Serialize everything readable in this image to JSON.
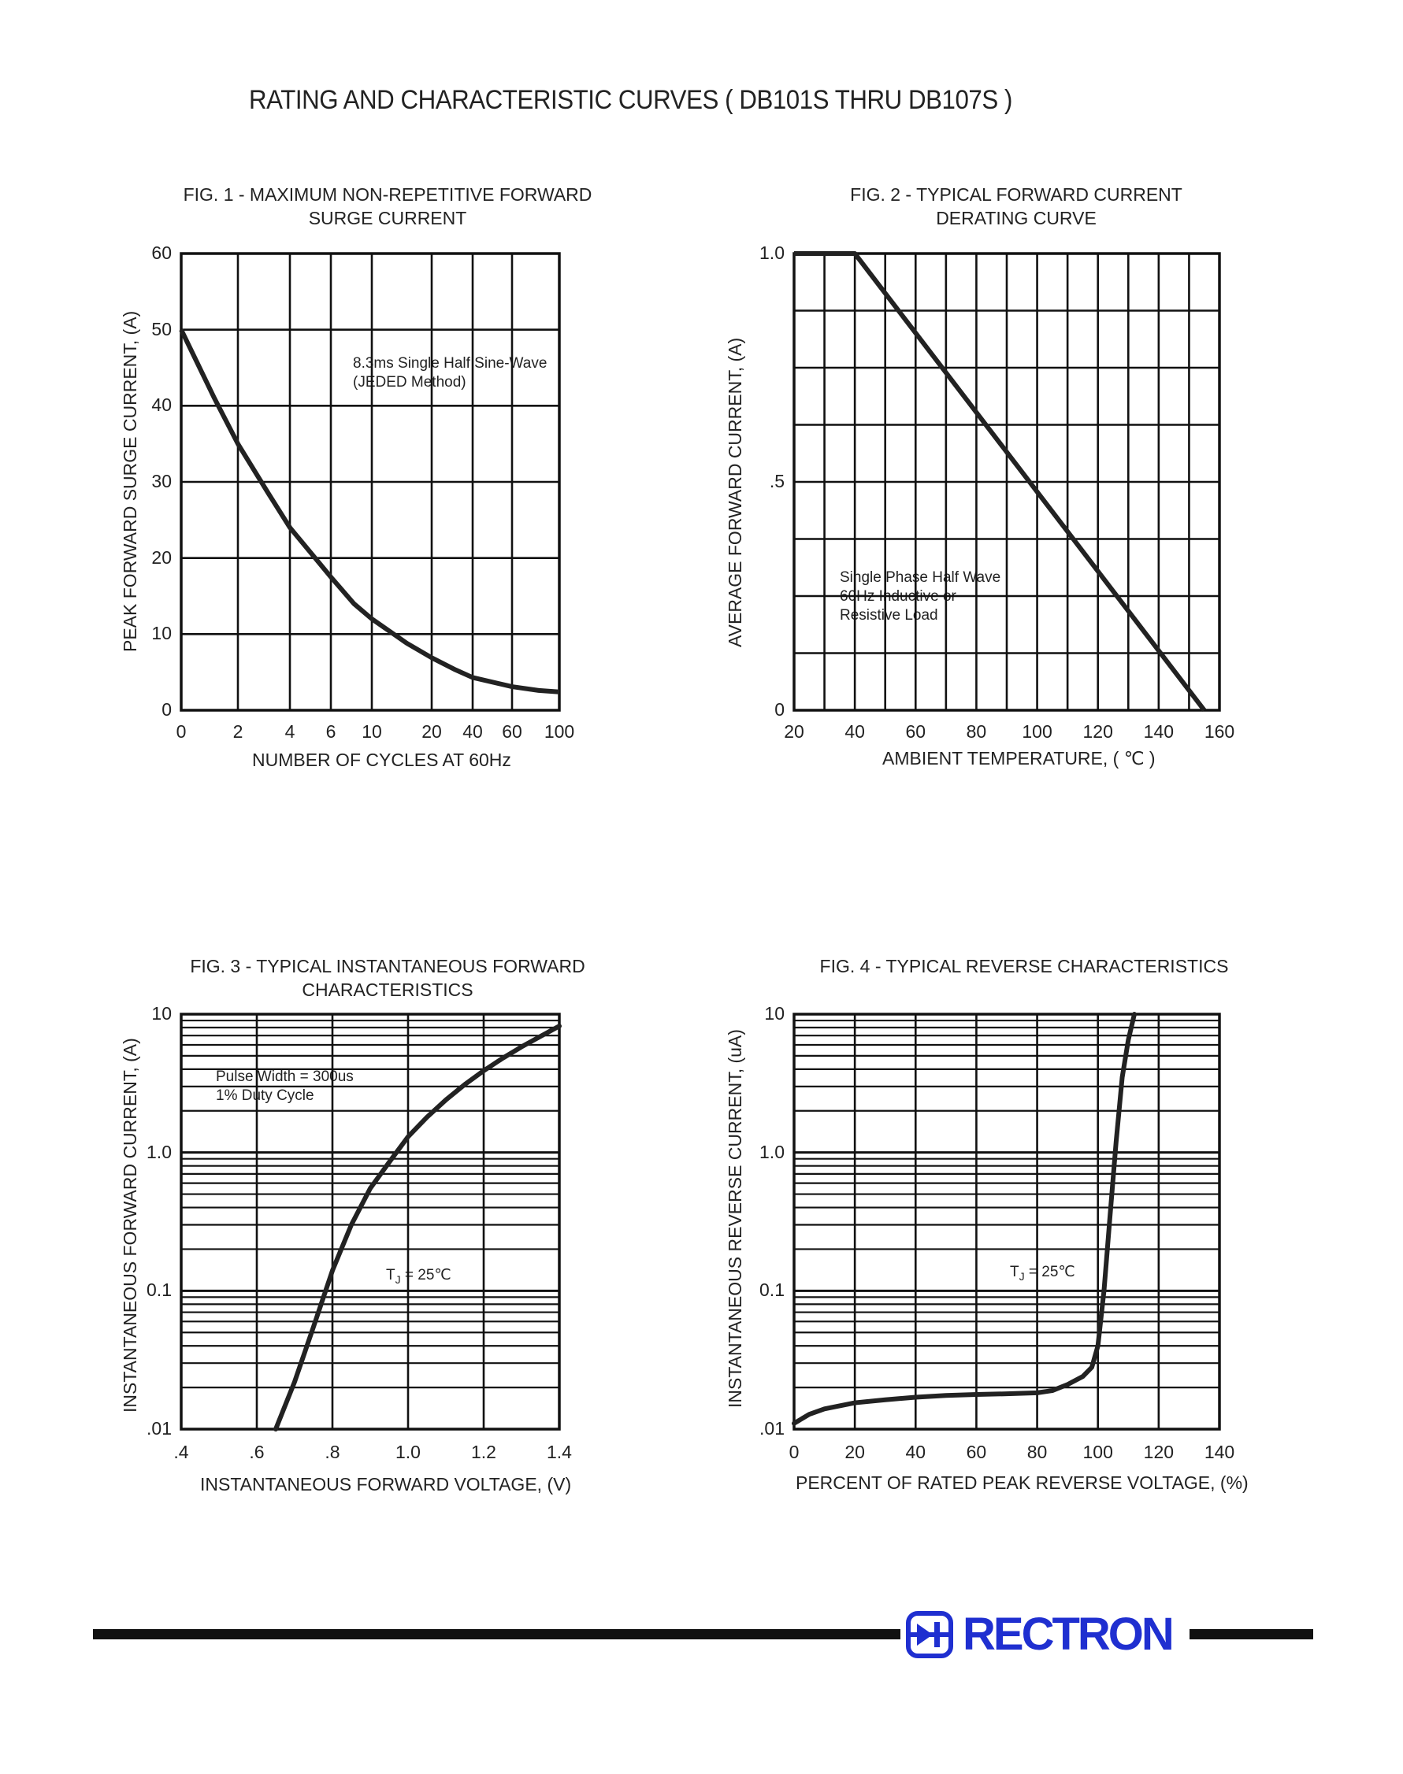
{
  "page": {
    "title": "RATING AND CHARACTERISTIC CURVES ( DB101S THRU DB107S )",
    "brand": "RECTRON",
    "brand_color": "#1f2fd0"
  },
  "chart_data": [
    {
      "id": "fig1",
      "type": "line",
      "title_lines": [
        "FIG. 1 - MAXIMUM NON-REPETITIVE FORWARD",
        "SURGE CURRENT"
      ],
      "xlabel": "NUMBER OF CYCLES AT 60Hz",
      "ylabel": "PEAK FORWARD SURGE CURRENT, (A)",
      "x_scale": "log",
      "xlim": [
        1,
        100
      ],
      "ylim": [
        0,
        60
      ],
      "x_tick_labels": [
        "0",
        "2",
        "4",
        "6",
        "10",
        "20",
        "40",
        "60",
        "100"
      ],
      "y_ticks": [
        0,
        10,
        20,
        30,
        40,
        50,
        60
      ],
      "grid": true,
      "annotation_lines": [
        "8.3ms Single Half Sine-Wave",
        "(JEDED Method)"
      ],
      "series": [
        {
          "x": [
            1,
            1.5,
            2,
            3,
            4,
            6,
            8,
            10,
            15,
            20,
            30,
            40,
            60,
            80,
            100
          ],
          "y": [
            50,
            41,
            35,
            28.5,
            24,
            17.5,
            14,
            12,
            8.8,
            6.9,
            5.3,
            4.3,
            3.1,
            2.6,
            2.4
          ]
        }
      ]
    },
    {
      "id": "fig2",
      "type": "line",
      "title_lines": [
        "FIG. 2 - TYPICAL FORWARD CURRENT",
        "DERATING CURVE"
      ],
      "xlabel": "AMBIENT TEMPERATURE, ( ℃ )",
      "ylabel": "AVERAGE FORWARD CURRENT, (A)",
      "xlim": [
        20,
        160
      ],
      "ylim": [
        0,
        1.0
      ],
      "x_ticks": [
        20,
        40,
        60,
        80,
        100,
        120,
        140,
        160
      ],
      "y_tick_labels": [
        "0",
        ".5",
        "1.0"
      ],
      "grid": true,
      "annotation_lines": [
        "Single Phase Half Wave",
        "60Hz Inductive or",
        "Resistive Load"
      ],
      "series": [
        {
          "x": [
            20,
            40,
            155
          ],
          "y": [
            1.0,
            1.0,
            0.0
          ]
        }
      ]
    },
    {
      "id": "fig3",
      "type": "line",
      "title_lines": [
        "FIG. 3 - TYPICAL INSTANTANEOUS FORWARD",
        "CHARACTERISTICS"
      ],
      "xlabel": "INSTANTANEOUS FORWARD VOLTAGE, (V)",
      "ylabel": "INSTANTANEOUS FORWARD CURRENT, (A)",
      "y_scale": "log",
      "xlim": [
        0.4,
        1.4
      ],
      "ylim": [
        0.01,
        10
      ],
      "x_tick_labels": [
        ".4",
        ".6",
        ".8",
        "1.0",
        "1.2",
        "1.4"
      ],
      "y_tick_labels": [
        ".01",
        "0.1",
        "1.0",
        "10"
      ],
      "grid": true,
      "annotation_lines": [
        "Pulse Width = 300us",
        "1% Duty Cycle"
      ],
      "annotation2": {
        "main": "T",
        "sub": "J",
        "rest": " = 25℃"
      },
      "series": [
        {
          "x": [
            0.65,
            0.7,
            0.75,
            0.8,
            0.85,
            0.9,
            0.95,
            1.0,
            1.05,
            1.1,
            1.15,
            1.2,
            1.25,
            1.3,
            1.35,
            1.4
          ],
          "y": [
            0.01,
            0.022,
            0.055,
            0.14,
            0.3,
            0.55,
            0.85,
            1.3,
            1.8,
            2.4,
            3.1,
            3.9,
            4.8,
            5.8,
            6.9,
            8.2
          ]
        }
      ]
    },
    {
      "id": "fig4",
      "type": "line",
      "title_lines": [
        "FIG. 4 - TYPICAL REVERSE CHARACTERISTICS"
      ],
      "xlabel": "PERCENT OF RATED PEAK REVERSE VOLTAGE, (%)",
      "ylabel": "INSTANTANEOUS REVERSE CURRENT, (uA)",
      "y_scale": "log",
      "xlim": [
        0,
        140
      ],
      "ylim": [
        0.01,
        10
      ],
      "x_ticks": [
        0,
        20,
        40,
        60,
        80,
        100,
        120,
        140
      ],
      "y_tick_labels": [
        ".01",
        "0.1",
        "1.0",
        "10"
      ],
      "grid": true,
      "annotation2": {
        "main": "T",
        "sub": "J",
        "rest": " = 25℃"
      },
      "series": [
        {
          "x": [
            0,
            5,
            10,
            20,
            30,
            40,
            50,
            60,
            70,
            80,
            85,
            90,
            95,
            98,
            100,
            102,
            104,
            106,
            108,
            110,
            112
          ],
          "y": [
            0.011,
            0.0128,
            0.014,
            0.0155,
            0.0163,
            0.017,
            0.0175,
            0.0178,
            0.018,
            0.0183,
            0.019,
            0.021,
            0.024,
            0.028,
            0.04,
            0.1,
            0.35,
            1.2,
            3.5,
            6.5,
            10
          ]
        }
      ]
    }
  ]
}
